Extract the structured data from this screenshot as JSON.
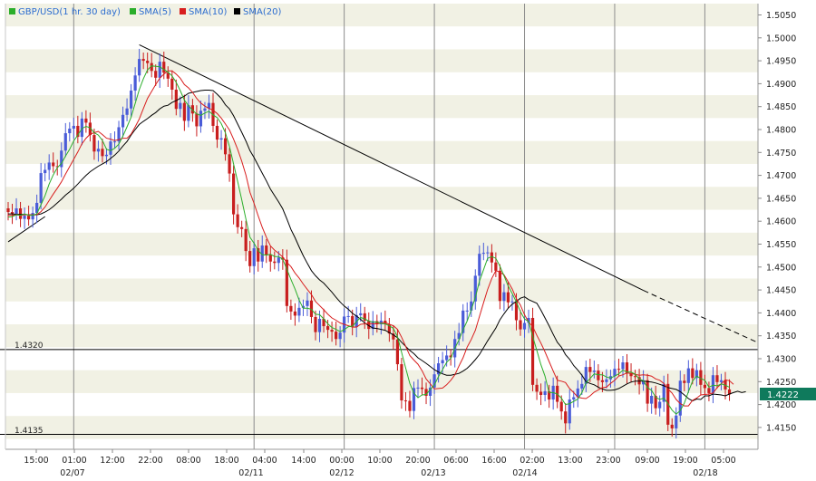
{
  "legend": {
    "title": "GBP/USD(1 hr. 30 day)",
    "sma5": "SMA(5)",
    "sma10": "SMA(10)",
    "sma20": "SMA(20)"
  },
  "colors": {
    "background": "#FFFFFF",
    "stripe": "#F1F1E4",
    "up": "#4A5CD8",
    "down": "#C81E1E",
    "sma5": "#2BAE2B",
    "sma10": "#D81E1E",
    "sma20": "#000000",
    "price_badge": "#0F7A5C"
  },
  "chart_data": {
    "type": "candlestick",
    "instrument": "GBP/USD",
    "timeframe": "1 hr. 30 day",
    "y_axis": {
      "side": "right",
      "ylim": [
        1.4105,
        1.5075
      ],
      "ticks": [
        "1.5050",
        "1.5000",
        "1.4950",
        "1.4900",
        "1.4850",
        "1.4800",
        "1.4750",
        "1.4700",
        "1.4650",
        "1.4600",
        "1.4550",
        "1.4500",
        "1.4450",
        "1.4400",
        "1.4350",
        "1.4300",
        "1.4250",
        "1.4200",
        "1.4150"
      ]
    },
    "x_axis": {
      "time_labels": [
        "15:00",
        "01:00",
        "12:00",
        "22:00",
        "08:00",
        "18:00",
        "04:00",
        "14:00",
        "00:00",
        "10:00",
        "20:00",
        "06:00",
        "16:00",
        "02:00",
        "13:00",
        "23:00",
        "09:00",
        "19:00",
        "05:00"
      ],
      "date_labels": [
        "02/07",
        "02/11",
        "02/12",
        "02/13",
        "02/14",
        "02/18"
      ]
    },
    "last_price": "1.4222",
    "horizontal_lines": [
      {
        "label": "1.4320",
        "value": 1.432
      },
      {
        "label": "1.4135",
        "value": 1.4135
      }
    ],
    "trendline": {
      "start_bar": 32,
      "start_value": 1.4985,
      "end_bar": 155,
      "end_value": 1.4449,
      "dashed_to_bar": 180,
      "dashed_value": 1.4335
    },
    "rising_line": {
      "start_bar": 0,
      "start_value": 1.4555,
      "end_bar": 9,
      "end_value": 1.461
    },
    "grid": "alternating horizontal bands, vertical lines at session breaks",
    "series_keys": [
      "close",
      "sma5",
      "sma10",
      "sma20"
    ],
    "close": [
      1.462,
      1.4616,
      1.4628,
      1.4605,
      1.4612,
      1.4604,
      1.4618,
      1.464,
      1.4705,
      1.4712,
      1.4728,
      1.472,
      1.4718,
      1.4754,
      1.4792,
      1.4802,
      1.4808,
      1.4784,
      1.4824,
      1.4815,
      1.4788,
      1.4752,
      1.4758,
      1.4742,
      1.4745,
      1.4774,
      1.4774,
      1.4805,
      1.4832,
      1.4846,
      1.4885,
      1.4918,
      1.4954,
      1.495,
      1.4945,
      1.4928,
      1.4913,
      1.4948,
      1.4924,
      1.4911,
      1.4887,
      1.4845,
      1.4858,
      1.4819,
      1.4853,
      1.4835,
      1.4807,
      1.4841,
      1.4846,
      1.4858,
      1.4808,
      1.4778,
      1.4781,
      1.4746,
      1.4704,
      1.4615,
      1.4587,
      1.4583,
      1.4535,
      1.4502,
      1.4541,
      1.4512,
      1.4547,
      1.4527,
      1.4512,
      1.4509,
      1.4521,
      1.4516,
      1.4415,
      1.4403,
      1.4394,
      1.4411,
      1.4415,
      1.4427,
      1.4391,
      1.4358,
      1.4387,
      1.4371,
      1.4363,
      1.4359,
      1.4343,
      1.4357,
      1.4392,
      1.4393,
      1.4369,
      1.4395,
      1.4399,
      1.4383,
      1.4365,
      1.4382,
      1.4375,
      1.4383,
      1.4375,
      1.4355,
      1.4342,
      1.4288,
      1.4209,
      1.4208,
      1.4186,
      1.4236,
      1.4237,
      1.4234,
      1.4219,
      1.4237,
      1.4266,
      1.429,
      1.4297,
      1.4307,
      1.4303,
      1.4343,
      1.4356,
      1.4405,
      1.4405,
      1.4425,
      1.4481,
      1.4529,
      1.4531,
      1.4532,
      1.451,
      1.4492,
      1.4426,
      1.4445,
      1.4423,
      1.4425,
      1.4384,
      1.4364,
      1.4378,
      1.4389,
      1.4243,
      1.4228,
      1.4221,
      1.4229,
      1.4211,
      1.4241,
      1.4206,
      1.4185,
      1.4159,
      1.4211,
      1.4216,
      1.4235,
      1.4245,
      1.4282,
      1.4271,
      1.4274,
      1.4253,
      1.4249,
      1.4255,
      1.4262,
      1.4278,
      1.4277,
      1.4292,
      1.4268,
      1.4262,
      1.426,
      1.4244,
      1.4253,
      1.4202,
      1.4219,
      1.4192,
      1.4206,
      1.4245,
      1.4156,
      1.4148,
      1.4176,
      1.4252,
      1.4247,
      1.4279,
      1.4258,
      1.4275,
      1.4243,
      1.4236,
      1.4225,
      1.4264,
      1.4249,
      1.4253,
      1.4233,
      1.4222
    ],
    "sma5": [
      1.4609,
      1.461,
      1.4614,
      1.4613,
      1.4616,
      1.4613,
      1.4613,
      1.4616,
      1.4636,
      1.4656,
      1.4681,
      1.4701,
      1.4717,
      1.4726,
      1.4742,
      1.4757,
      1.4775,
      1.4788,
      1.4802,
      1.4807,
      1.4804,
      1.4793,
      1.4788,
      1.4776,
      1.4757,
      1.4754,
      1.4759,
      1.4768,
      1.4786,
      1.4806,
      1.4827,
      1.4857,
      1.4887,
      1.4911,
      1.493,
      1.4939,
      1.4938,
      1.4937,
      1.4931,
      1.4925,
      1.4917,
      1.4903,
      1.4885,
      1.4864,
      1.4852,
      1.4842,
      1.4834,
      1.4831,
      1.4836,
      1.484,
      1.4832,
      1.4826,
      1.4813,
      1.4793,
      1.4763,
      1.4725,
      1.4687,
      1.4647,
      1.4605,
      1.4565,
      1.4552,
      1.4536,
      1.4527,
      1.4526,
      1.4528,
      1.4523,
      1.4523,
      1.4517,
      1.4495,
      1.4473,
      1.4452,
      1.4428,
      1.441,
      1.441,
      1.4408,
      1.4397,
      1.4396,
      1.4387,
      1.4376,
      1.4368,
      1.4364,
      1.4359,
      1.4363,
      1.437,
      1.4371,
      1.4381,
      1.439,
      1.4387,
      1.4382,
      1.438,
      1.438,
      1.4377,
      1.4376,
      1.4372,
      1.4366,
      1.4348,
      1.4314,
      1.428,
      1.4246,
      1.4225,
      1.4215,
      1.4221,
      1.4222,
      1.4233,
      1.4243,
      1.4261,
      1.4276,
      1.4292,
      1.4301,
      1.4323,
      1.4341,
      1.4363,
      1.4382,
      1.4407,
      1.4434,
      1.4469,
      1.4494,
      1.4519,
      1.4523,
      1.4519,
      1.4502,
      1.4481,
      1.4459,
      1.4442,
      1.4424,
      1.4403,
      1.4387,
      1.4381,
      1.4348,
      1.4318,
      1.4287,
      1.4262,
      1.4226,
      1.4226,
      1.4223,
      1.4214,
      1.42,
      1.4202,
      1.4207,
      1.4212,
      1.4226,
      1.4247,
      1.4257,
      1.4267,
      1.4265,
      1.4265,
      1.426,
      1.4258,
      1.4262,
      1.4267,
      1.4275,
      1.4271,
      1.4271,
      1.4266,
      1.4256,
      1.4252,
      1.4237,
      1.4231,
      1.4216,
      1.4211,
      1.4214,
      1.4202,
      1.4188,
      1.4179,
      1.4187,
      1.4203,
      1.4228,
      1.4251,
      1.4262,
      1.4257,
      1.4253,
      1.4238,
      1.4242,
      1.4241,
      1.4245,
      1.4242,
      1.4238
    ],
    "sma10": [
      1.4613,
      1.4613,
      1.4614,
      1.4613,
      1.4614,
      1.4614,
      1.4614,
      1.4614,
      1.4621,
      1.4631,
      1.4645,
      1.4659,
      1.4672,
      1.4686,
      1.4703,
      1.4719,
      1.4735,
      1.4751,
      1.4769,
      1.4781,
      1.479,
      1.4793,
      1.4796,
      1.4789,
      1.4781,
      1.4779,
      1.4776,
      1.4778,
      1.4781,
      1.4781,
      1.479,
      1.4806,
      1.4823,
      1.4846,
      1.4868,
      1.4883,
      1.4898,
      1.4912,
      1.4921,
      1.4928,
      1.4928,
      1.4921,
      1.4912,
      1.4898,
      1.4891,
      1.4881,
      1.4868,
      1.4858,
      1.4851,
      1.4846,
      1.4842,
      1.4835,
      1.4825,
      1.4812,
      1.4799,
      1.4779,
      1.4757,
      1.4731,
      1.4701,
      1.4663,
      1.4639,
      1.4612,
      1.4587,
      1.4565,
      1.4546,
      1.4537,
      1.453,
      1.4522,
      1.451,
      1.4501,
      1.4487,
      1.4476,
      1.4463,
      1.4451,
      1.444,
      1.4425,
      1.4416,
      1.4407,
      1.4397,
      1.4389,
      1.4384,
      1.4378,
      1.4375,
      1.4372,
      1.4369,
      1.4369,
      1.4375,
      1.4376,
      1.4377,
      1.4376,
      1.4376,
      1.4378,
      1.4379,
      1.4375,
      1.4372,
      1.4364,
      1.4347,
      1.4327,
      1.4307,
      1.4297,
      1.4288,
      1.4274,
      1.4256,
      1.4245,
      1.4234,
      1.4235,
      1.4236,
      1.4243,
      1.4253,
      1.4265,
      1.4284,
      1.4302,
      1.4325,
      1.4342,
      1.4362,
      1.4392,
      1.4422,
      1.4451,
      1.4475,
      1.4492,
      1.4489,
      1.4483,
      1.4468,
      1.4452,
      1.4431,
      1.4417,
      1.4396,
      1.438,
      1.437,
      1.4351,
      1.4334,
      1.4315,
      1.4294,
      1.4273,
      1.4253,
      1.4251,
      1.4248,
      1.4235,
      1.4226,
      1.4216,
      1.4214,
      1.4213,
      1.4219,
      1.4227,
      1.4232,
      1.4237,
      1.4238,
      1.4246,
      1.4253,
      1.4262,
      1.4265,
      1.4269,
      1.4268,
      1.4266,
      1.4264,
      1.4265,
      1.4264,
      1.4262,
      1.4256,
      1.4253,
      1.4246,
      1.4234,
      1.4225,
      1.4211,
      1.4202,
      1.4197,
      1.4197,
      1.4209,
      1.4214,
      1.4221,
      1.4222,
      1.4223,
      1.4225,
      1.4237,
      1.4245,
      1.4254,
      1.4252,
      1.4244
    ],
    "sma20": [
      1.4616,
      1.4616,
      1.4615,
      1.4615,
      1.4615,
      1.4614,
      1.4614,
      1.4614,
      1.4616,
      1.462,
      1.4625,
      1.4632,
      1.464,
      1.4648,
      1.4657,
      1.4664,
      1.4672,
      1.4681,
      1.4691,
      1.47,
      1.4708,
      1.4714,
      1.472,
      1.4725,
      1.473,
      1.4737,
      1.4744,
      1.4753,
      1.4764,
      1.4774,
      1.4788,
      1.48,
      1.4811,
      1.4818,
      1.4824,
      1.4831,
      1.4837,
      1.4845,
      1.4851,
      1.4853,
      1.4859,
      1.4863,
      1.4868,
      1.4873,
      1.4879,
      1.4881,
      1.4883,
      1.4885,
      1.4886,
      1.4886,
      1.4885,
      1.4877,
      1.4868,
      1.4854,
      1.4845,
      1.483,
      1.4812,
      1.4794,
      1.4775,
      1.4754,
      1.4739,
      1.4722,
      1.4705,
      1.4688,
      1.467,
      1.4656,
      1.4642,
      1.4627,
      1.4605,
      1.4582,
      1.4564,
      1.4544,
      1.4525,
      1.4508,
      1.4492,
      1.4481,
      1.4472,
      1.4465,
      1.4455,
      1.4445,
      1.4434,
      1.4424,
      1.4415,
      1.4408,
      1.4399,
      1.4393,
      1.4386,
      1.4378,
      1.4372,
      1.4367,
      1.4366,
      1.4364,
      1.4362,
      1.4357,
      1.4352,
      1.4346,
      1.4336,
      1.4327,
      1.4318,
      1.4311,
      1.4302,
      1.4296,
      1.429,
      1.4283,
      1.4276,
      1.4271,
      1.4267,
      1.4264,
      1.4264,
      1.4266,
      1.4268,
      1.4273,
      1.4279,
      1.4288,
      1.4298,
      1.4309,
      1.4324,
      1.4339,
      1.4353,
      1.4367,
      1.4385,
      1.4398,
      1.441,
      1.4419,
      1.4425,
      1.4432,
      1.4435,
      1.4429,
      1.4425,
      1.4421,
      1.4406,
      1.4389,
      1.4372,
      1.4353,
      1.4336,
      1.4325,
      1.4309,
      1.4299,
      1.4285,
      1.4275,
      1.4264,
      1.425,
      1.4246,
      1.4243,
      1.4238,
      1.4234,
      1.4231,
      1.4231,
      1.4232,
      1.4235,
      1.424,
      1.4245,
      1.4249,
      1.4251,
      1.4251,
      1.4251,
      1.425,
      1.4249,
      1.4247,
      1.4244,
      1.4241,
      1.4237,
      1.4235,
      1.4233,
      1.4228,
      1.4221,
      1.4213,
      1.4208,
      1.4212,
      1.4211,
      1.4219,
      1.4219,
      1.4223,
      1.4222,
      1.4221,
      1.4219,
      1.4223,
      1.4226,
      1.4229,
      1.4226,
      1.4228
    ]
  }
}
